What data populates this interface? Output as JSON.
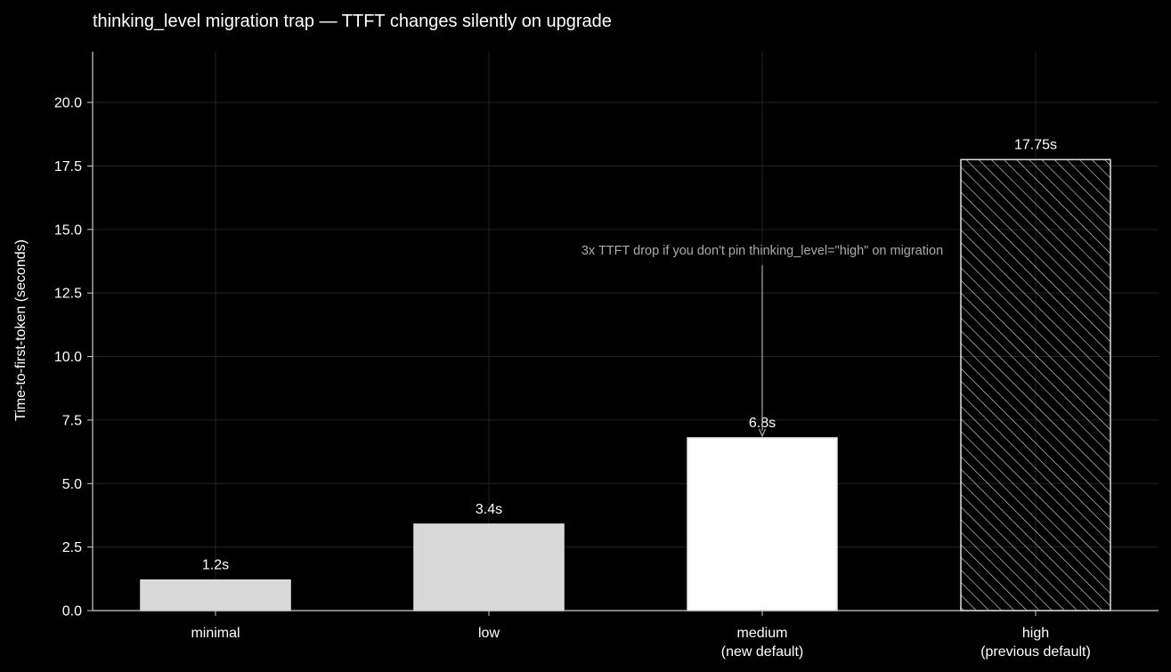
{
  "chart_data": {
    "type": "bar",
    "title": "thinking_level migration trap — TTFT changes silently on upgrade",
    "xlabel": "",
    "ylabel": "Time-to-first-token (seconds)",
    "ylim": [
      0,
      22
    ],
    "yticks": [
      0.0,
      2.5,
      5.0,
      7.5,
      10.0,
      12.5,
      15.0,
      17.5,
      20.0
    ],
    "categories": [
      [
        "minimal"
      ],
      [
        "low"
      ],
      [
        "medium",
        "(new default)"
      ],
      [
        "high",
        "(previous default)"
      ]
    ],
    "values": [
      1.2,
      3.4,
      6.8,
      17.75
    ],
    "value_labels": [
      "1.2s",
      "3.4s",
      "6.8s",
      "17.75s"
    ],
    "bar_styles": [
      "solid-gray",
      "solid-gray",
      "solid-white",
      "hatched"
    ],
    "grid": true,
    "annotation": {
      "text": "3x TTFT drop if you don't pin thinking_level=\"high\" on migration",
      "target_category_index": 2,
      "target_value": 6.8,
      "arrow_from_value": 13.6
    }
  },
  "colors": {
    "background": "#000000",
    "text": "#ffffff",
    "axis": "#cccccc",
    "grid": "#222222",
    "bar_gray": "#d8d8d8",
    "bar_white": "#ffffff",
    "bar_edge": "#e0e0e0",
    "annotation": "#aaaaaa"
  }
}
